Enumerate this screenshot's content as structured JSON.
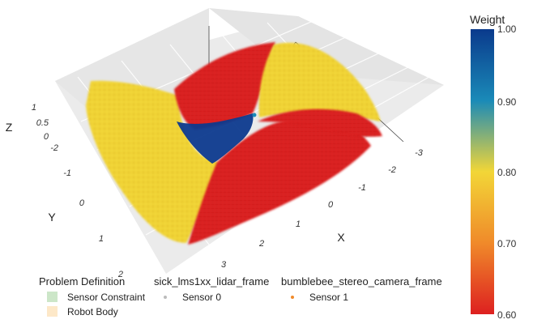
{
  "chart_data": {
    "type": "scatter3d",
    "axes": {
      "x": {
        "title": "X",
        "ticks": [
          "-3",
          "-2",
          "-1",
          "0",
          "1",
          "2",
          "3"
        ]
      },
      "y": {
        "title": "Y",
        "ticks": [
          "-2",
          "-1",
          "0",
          "1",
          "2"
        ]
      },
      "z": {
        "title": "Z",
        "ticks": [
          "-2",
          "0",
          "0.5",
          "1"
        ]
      }
    },
    "colorbar": {
      "title": "Weight",
      "range": [
        0.6,
        1.0
      ],
      "ticks": [
        "1.00",
        "0.90",
        "0.80",
        "0.70",
        "0.60"
      ],
      "colors": [
        "#0a3a8c",
        "#1a8ab8",
        "#f2d637",
        "#f08a2a",
        "#dd2020"
      ]
    },
    "regions": [
      {
        "weight": 0.8,
        "color": "#f2d637"
      },
      {
        "weight": 0.62,
        "color": "#dd2222"
      },
      {
        "weight": 0.98,
        "color": "#0d3a8e"
      }
    ],
    "legend": {
      "groups": [
        {
          "title": "Problem Definition",
          "items": [
            {
              "label": "Sensor Constraint",
              "color": "#cce6c8",
              "marker": "square"
            },
            {
              "label": "Robot Body",
              "color": "#fde8c8",
              "marker": "square"
            }
          ]
        },
        {
          "title": "sick_lms1xx_lidar_frame",
          "items": [
            {
              "label": "Sensor 0",
              "color": "#bbbbbb",
              "marker": "dot"
            }
          ]
        },
        {
          "title": "bumblebee_stereo_camera_frame",
          "items": [
            {
              "label": "Sensor 1",
              "color": "#f08a2a",
              "marker": "dot"
            }
          ]
        }
      ]
    }
  }
}
